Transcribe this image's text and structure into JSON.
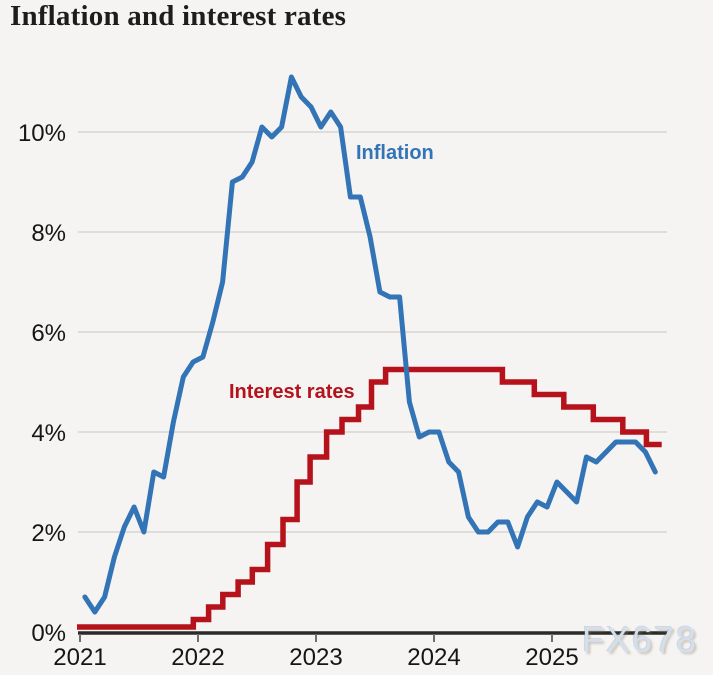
{
  "title": "Inflation and interest rates",
  "watermark": "FX678",
  "chart_data": {
    "type": "line",
    "title": "Inflation and interest rates",
    "xlabel": "",
    "ylabel": "",
    "x_axis": {
      "tick_labels": [
        "2021",
        "2022",
        "2023",
        "2024",
        "2025"
      ],
      "tick_values": [
        2021,
        2022,
        2023,
        2024,
        2025
      ],
      "range": [
        2021,
        2026.1
      ]
    },
    "y_axis": {
      "tick_labels": [
        "0%",
        "2%",
        "4%",
        "6%",
        "8%",
        "10%"
      ],
      "tick_values": [
        0,
        2,
        4,
        6,
        8,
        10
      ],
      "range": [
        0,
        11.5
      ],
      "grid": true
    },
    "legend_position": "inline-labels",
    "series": [
      {
        "name": "Inflation",
        "type": "line",
        "color": "#3274b5",
        "unit": "%",
        "frequency": "monthly",
        "start_month": "2021-01",
        "end_month": "2025-11",
        "values": [
          0.7,
          0.4,
          0.7,
          1.5,
          2.1,
          2.5,
          2.0,
          3.2,
          3.1,
          4.2,
          5.1,
          5.4,
          5.5,
          6.2,
          7.0,
          9.0,
          9.1,
          9.4,
          10.1,
          9.9,
          10.1,
          11.1,
          10.7,
          10.5,
          10.1,
          10.4,
          10.1,
          8.7,
          8.7,
          7.9,
          6.8,
          6.7,
          6.7,
          4.6,
          3.9,
          4.0,
          4.0,
          3.4,
          3.2,
          2.3,
          2.0,
          2.0,
          2.2,
          2.2,
          1.7,
          2.3,
          2.6,
          2.5,
          3.0,
          2.8,
          2.6,
          3.5,
          3.4,
          3.6,
          3.8,
          3.8,
          3.8,
          3.6,
          3.2
        ]
      },
      {
        "name": "Interest rates",
        "type": "step",
        "color": "#b5121b",
        "unit": "%",
        "steps": [
          [
            2021.0,
            0.1
          ],
          [
            2021.96,
            0.25
          ],
          [
            2022.09,
            0.5
          ],
          [
            2022.21,
            0.75
          ],
          [
            2022.34,
            1.0
          ],
          [
            2022.46,
            1.25
          ],
          [
            2022.59,
            1.75
          ],
          [
            2022.72,
            2.25
          ],
          [
            2022.84,
            3.0
          ],
          [
            2022.95,
            3.5
          ],
          [
            2023.09,
            4.0
          ],
          [
            2023.22,
            4.25
          ],
          [
            2023.36,
            4.5
          ],
          [
            2023.47,
            5.0
          ],
          [
            2023.59,
            5.25
          ],
          [
            2024.58,
            5.0
          ],
          [
            2024.85,
            4.75
          ],
          [
            2025.1,
            4.5
          ],
          [
            2025.35,
            4.25
          ],
          [
            2025.6,
            4.0
          ],
          [
            2025.8,
            3.75
          ]
        ],
        "end_x": 2025.93
      }
    ]
  }
}
